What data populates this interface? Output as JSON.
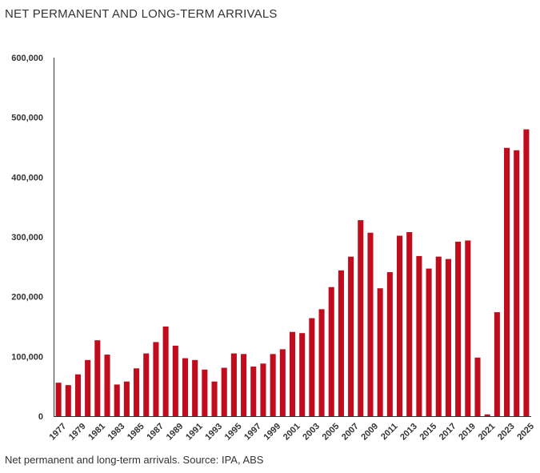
{
  "header": {
    "title": "NET PERMANENT AND LONG-TERM ARRIVALS"
  },
  "footer": {
    "caption": "Net permanent and long-term arrivals. Source: IPA, ABS"
  },
  "colors": {
    "bar": "#c00c1c",
    "axis": "#333333",
    "text": "#333333"
  },
  "chart_data": {
    "type": "bar",
    "title": "NET PERMANENT AND LONG-TERM ARRIVALS",
    "xlabel": "",
    "ylabel": "",
    "ylim": [
      0,
      600000
    ],
    "grid": false,
    "legend": "none",
    "y_ticks": [
      0,
      100000,
      200000,
      300000,
      400000,
      500000,
      600000
    ],
    "y_tick_labels": [
      "0",
      "100,000",
      "200,000",
      "300,000",
      "400,000",
      "500,000",
      "600,000"
    ],
    "x_tick_labels": [
      "1977",
      "1979",
      "1981",
      "1983",
      "1985",
      "1987",
      "1989",
      "1991",
      "1993",
      "1995",
      "1997",
      "1999",
      "2001",
      "2003",
      "2005",
      "2007",
      "2009",
      "2011",
      "2013",
      "2015",
      "2017",
      "2019",
      "2021",
      "2023",
      "2025"
    ],
    "categories": [
      "1977",
      "1978",
      "1979",
      "1980",
      "1981",
      "1982",
      "1983",
      "1984",
      "1985",
      "1986",
      "1987",
      "1988",
      "1989",
      "1990",
      "1991",
      "1992",
      "1993",
      "1994",
      "1995",
      "1996",
      "1997",
      "1998",
      "1999",
      "2000",
      "2001",
      "2002",
      "2003",
      "2004",
      "2005",
      "2006",
      "2007",
      "2008",
      "2009",
      "2010",
      "2011",
      "2012",
      "2013",
      "2014",
      "2015",
      "2016",
      "2017",
      "2018",
      "2019",
      "2020",
      "2021",
      "2022",
      "2023",
      "2024",
      "2025"
    ],
    "values": [
      56000,
      52000,
      70000,
      94000,
      127000,
      103000,
      53000,
      58000,
      80000,
      105000,
      124000,
      150000,
      118000,
      97000,
      94000,
      78000,
      58000,
      81000,
      105000,
      104000,
      83000,
      88000,
      104000,
      112000,
      141000,
      139000,
      164000,
      179000,
      216000,
      244000,
      267000,
      328000,
      307000,
      214000,
      241000,
      302000,
      308000,
      268000,
      247000,
      267000,
      263000,
      292000,
      294000,
      98000,
      3000,
      174000,
      449000,
      445000,
      480000
    ]
  }
}
